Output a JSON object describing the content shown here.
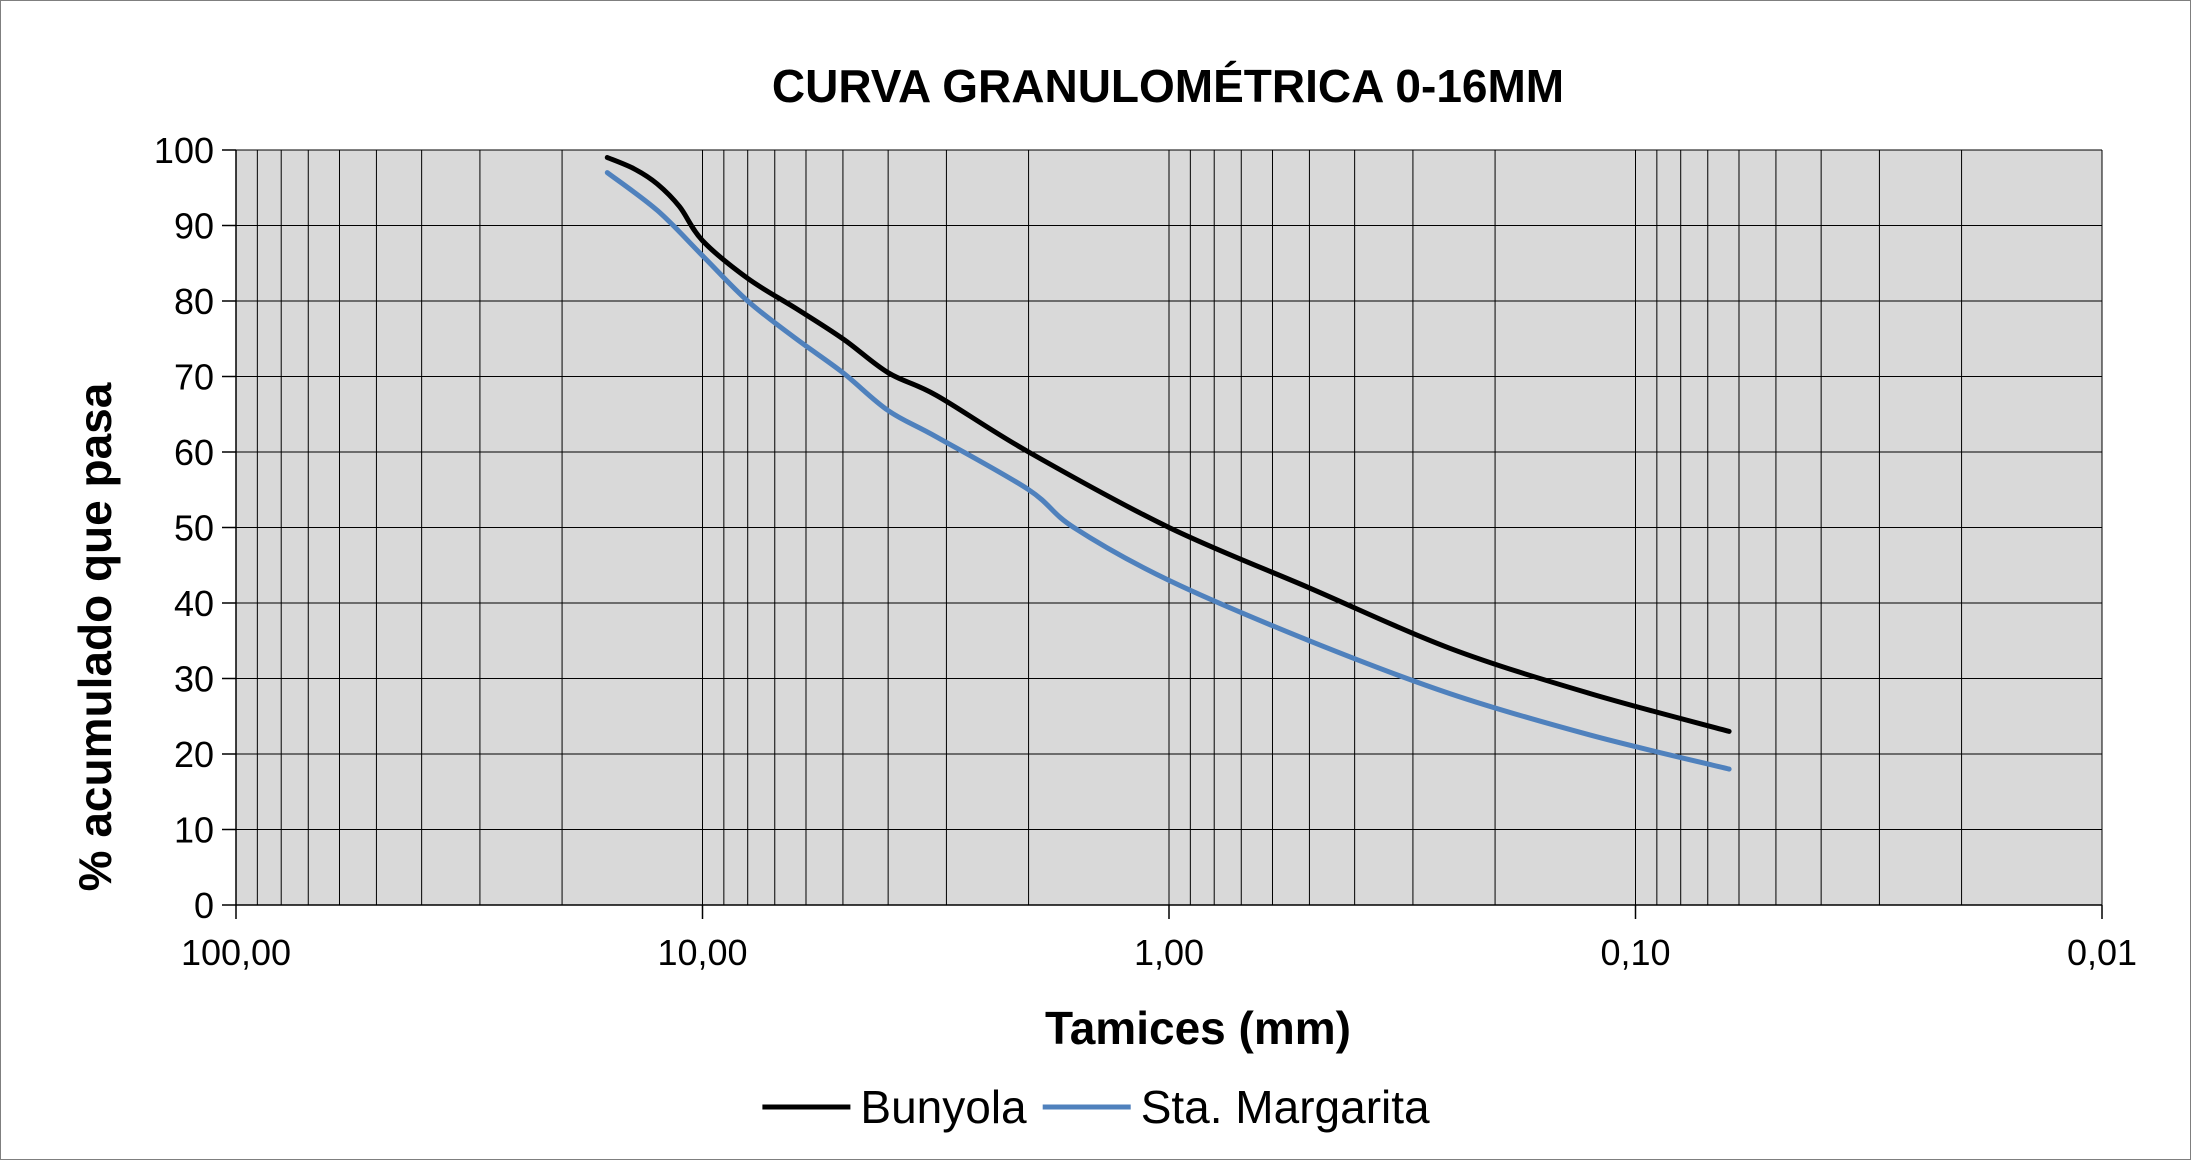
{
  "chart_data": {
    "type": "line",
    "title": "CURVA GRANULOMÉTRICA 0-16MM",
    "xlabel": "Tamices (mm)",
    "ylabel": "% acumulado que pasa",
    "x_scale": "log",
    "x_reversed": true,
    "xlim": [
      100,
      0.01
    ],
    "ylim": [
      0,
      100
    ],
    "x_ticks": [
      100,
      10,
      1,
      0.1,
      0.01
    ],
    "x_tick_labels": [
      "100,00",
      "10,00",
      "1,00",
      "0,10",
      "0,01"
    ],
    "y_ticks": [
      0,
      10,
      20,
      30,
      40,
      50,
      60,
      70,
      80,
      90,
      100
    ],
    "y_tick_labels": [
      "0",
      "10",
      "20",
      "30",
      "40",
      "50",
      "60",
      "70",
      "80",
      "90",
      "100"
    ],
    "grid": true,
    "legend": "bottom",
    "series": [
      {
        "name": "Bunyola",
        "color": "#000000",
        "x": [
          16,
          14,
          12.5,
          11.2,
          10,
          8,
          6.3,
          5,
          4,
          3.15,
          2,
          1,
          0.5,
          0.25,
          0.125,
          0.063
        ],
        "y": [
          99,
          97.5,
          95.5,
          92.5,
          88,
          83,
          79,
          75,
          70.5,
          67.5,
          60,
          50,
          42,
          34,
          28,
          23
        ]
      },
      {
        "name": "Sta. Margarita",
        "color": "#4f81bd",
        "x": [
          16,
          12.5,
          10,
          8,
          6.3,
          5,
          4,
          3.15,
          2,
          1.6,
          1,
          0.5,
          0.25,
          0.125,
          0.063
        ],
        "y": [
          97,
          92,
          86,
          80,
          75,
          70.5,
          65.5,
          62,
          55,
          50,
          43,
          35,
          28,
          22.5,
          18
        ]
      }
    ]
  }
}
